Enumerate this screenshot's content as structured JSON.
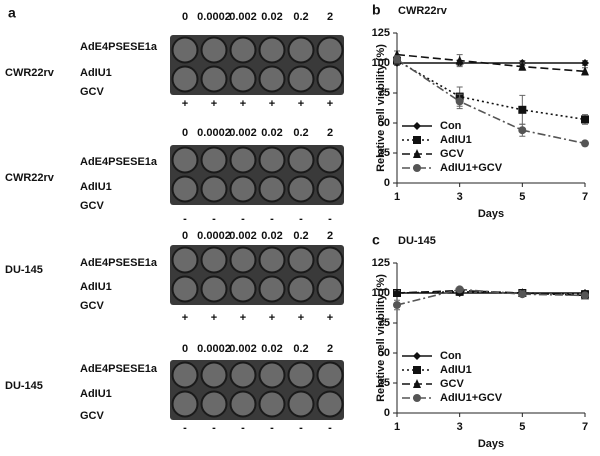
{
  "panel_a": {
    "label": "a",
    "blocks": [
      {
        "cell_line": "CWR22rv",
        "concentrations": [
          "0",
          "0.0002",
          "0.002",
          "0.02",
          "0.2",
          "2"
        ],
        "rows": [
          "AdE4PSESE1a",
          "AdIU1",
          "GCV"
        ],
        "gcv_signs": [
          "+",
          "+",
          "+",
          "+",
          "+",
          "+"
        ]
      },
      {
        "cell_line": "CWR22rv",
        "concentrations": [
          "0",
          "0.0002",
          "0.002",
          "0.02",
          "0.2",
          "2"
        ],
        "rows": [
          "AdE4PSESE1a",
          "AdIU1",
          "GCV"
        ],
        "gcv_signs": [
          "-",
          "-",
          "-",
          "-",
          "-",
          "-"
        ]
      },
      {
        "cell_line": "DU-145",
        "concentrations": [
          "0",
          "0.0002",
          "0.002",
          "0.02",
          "0.2",
          "2"
        ],
        "rows": [
          "AdE4PSESE1a",
          "AdIU1",
          "GCV"
        ],
        "gcv_signs": [
          "+",
          "+",
          "+",
          "+",
          "+",
          "+"
        ]
      },
      {
        "cell_line": "DU-145",
        "concentrations": [
          "0",
          "0.0002",
          "0.002",
          "0.02",
          "0.2",
          "2"
        ],
        "rows": [
          "AdE4PSESE1a",
          "AdIU1",
          "GCV"
        ],
        "gcv_signs": [
          "-",
          "-",
          "-",
          "-",
          "-",
          "-"
        ]
      }
    ]
  },
  "chart_data": [
    {
      "type": "line",
      "panel": "b",
      "title": "CWR22rv",
      "x_label": "Days",
      "y_label": "Relative cell viability (%)",
      "x": [
        1,
        3,
        5,
        7
      ],
      "xlim": [
        1,
        7
      ],
      "xticks": [
        1,
        3,
        5,
        7
      ],
      "ylim": [
        0,
        125
      ],
      "yticks": [
        0,
        25,
        50,
        75,
        100,
        125
      ],
      "series": [
        {
          "name": "Con",
          "color": "#111111",
          "marker": "diamond",
          "linestyle": "solid",
          "values": [
            100,
            100,
            100,
            100
          ],
          "errors": [
            2,
            2,
            2,
            2
          ]
        },
        {
          "name": "AdIU1",
          "color": "#111111",
          "marker": "square",
          "linestyle": "dotted",
          "values": [
            102,
            72,
            61,
            53
          ],
          "errors": [
            3,
            8,
            12,
            4
          ]
        },
        {
          "name": "GCV",
          "color": "#111111",
          "marker": "triangle",
          "linestyle": "dashed",
          "values": [
            107,
            102,
            97,
            93
          ],
          "errors": [
            3,
            5,
            3,
            3
          ]
        },
        {
          "name": "AdIU1+GCV",
          "color": "#555555",
          "marker": "circle",
          "linestyle": "dashdot",
          "values": [
            103,
            68,
            44,
            33
          ],
          "errors": [
            3,
            6,
            5,
            2
          ]
        }
      ]
    },
    {
      "type": "line",
      "panel": "c",
      "title": "DU-145",
      "x_label": "Days",
      "y_label": "Relative cell viability (%)",
      "x": [
        1,
        3,
        5,
        7
      ],
      "xlim": [
        1,
        7
      ],
      "xticks": [
        1,
        3,
        5,
        7
      ],
      "ylim": [
        0,
        125
      ],
      "yticks": [
        0,
        25,
        50,
        75,
        100,
        125
      ],
      "series": [
        {
          "name": "Con",
          "color": "#111111",
          "marker": "diamond",
          "linestyle": "solid",
          "values": [
            100,
            100,
            100,
            100
          ],
          "errors": [
            2,
            2,
            2,
            2
          ]
        },
        {
          "name": "AdIU1",
          "color": "#111111",
          "marker": "square",
          "linestyle": "dotted",
          "values": [
            100,
            101,
            100,
            99
          ],
          "errors": [
            2,
            2,
            2,
            2
          ]
        },
        {
          "name": "GCV",
          "color": "#111111",
          "marker": "triangle",
          "linestyle": "dashed",
          "values": [
            100,
            102,
            100,
            98
          ],
          "errors": [
            2,
            2,
            2,
            2
          ]
        },
        {
          "name": "AdIU1+GCV",
          "color": "#555555",
          "marker": "circle",
          "linestyle": "dashdot",
          "values": [
            90,
            103,
            99,
            98
          ],
          "errors": [
            4,
            2,
            2,
            2
          ]
        }
      ]
    }
  ]
}
